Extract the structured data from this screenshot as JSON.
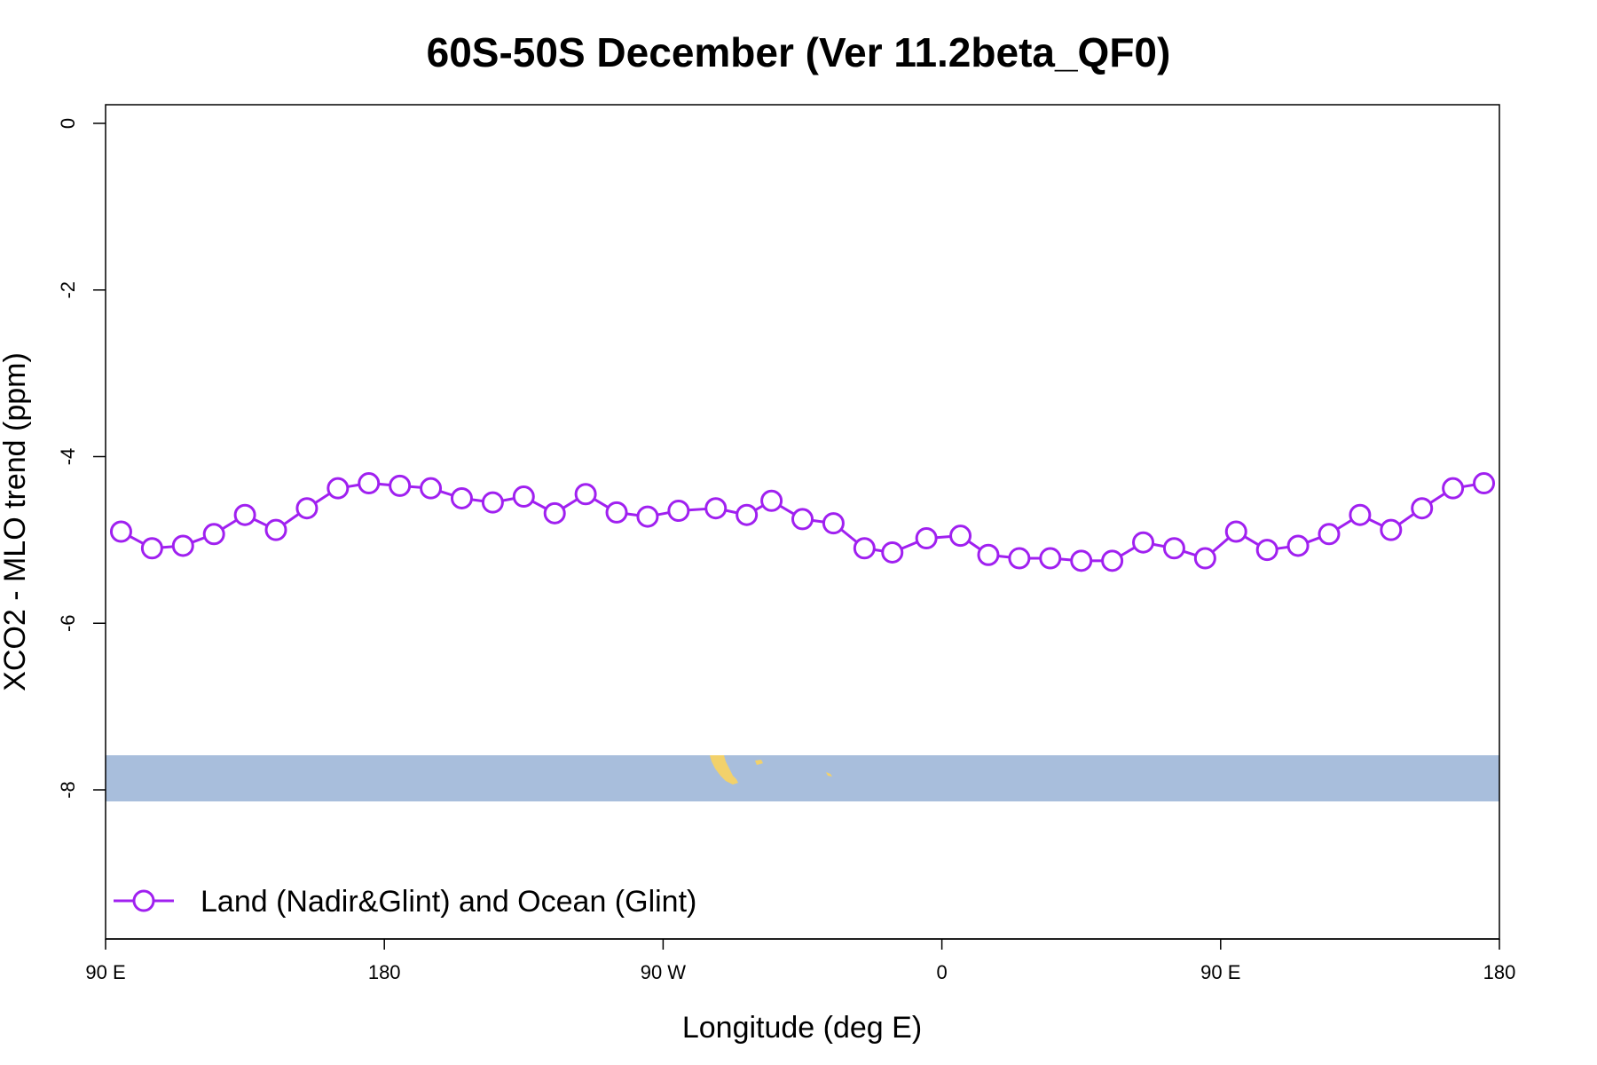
{
  "chart_data": {
    "type": "line",
    "title": "60S-50S December (Ver 11.2beta_QF0)",
    "xlabel": "Longitude (deg E)",
    "ylabel": "XCO2 - MLO trend (ppm)",
    "x_tick_labels": [
      "90 E",
      "180",
      "90 W",
      "0",
      "90 E",
      "180"
    ],
    "y_tick_labels": [
      "0",
      "-2",
      "-4",
      "-6",
      "-8"
    ],
    "y_ticks": [
      0,
      -2,
      -4,
      -6,
      -8
    ],
    "ylim": [
      -9.8,
      0.2
    ],
    "xlim": [
      90,
      540
    ],
    "x_ticks": [
      90,
      180,
      270,
      360,
      450,
      540
    ],
    "legend": {
      "label": "Land (Nadir&Glint) and Ocean (Glint)",
      "position": "bottom-left"
    },
    "colors": {
      "series": "#a020f0",
      "map_ocean": "#a8bedc",
      "map_land": "#f2d16b",
      "axis": "#000000"
    },
    "series": [
      {
        "name": "Land (Nadir&Glint) and Ocean (Glint)",
        "x": [
          95,
          105,
          115,
          125,
          135,
          145,
          155,
          165,
          175,
          185,
          195,
          205,
          215,
          225,
          235,
          245,
          255,
          265,
          275,
          287,
          297,
          305,
          315,
          325,
          335,
          344,
          355,
          366,
          375,
          385,
          395,
          405,
          415,
          425,
          435,
          445,
          455,
          465,
          475,
          485,
          495,
          505,
          515,
          525,
          535
        ],
        "values": [
          -4.9,
          -5.1,
          -5.07,
          -4.93,
          -4.7,
          -4.88,
          -4.62,
          -4.38,
          -4.32,
          -4.35,
          -4.38,
          -4.5,
          -4.55,
          -4.48,
          -4.68,
          -4.45,
          -4.67,
          -4.72,
          -4.65,
          -4.62,
          -4.7,
          -4.53,
          -4.75,
          -4.8,
          -5.1,
          -5.15,
          -4.98,
          -4.95,
          -5.18,
          -5.22,
          -5.22,
          -5.25,
          -5.25,
          -5.03,
          -5.1,
          -5.22,
          -4.9,
          -5.12,
          -5.07,
          -4.93,
          -4.7,
          -4.88,
          -4.62,
          -4.38,
          -4.32
        ]
      }
    ]
  }
}
